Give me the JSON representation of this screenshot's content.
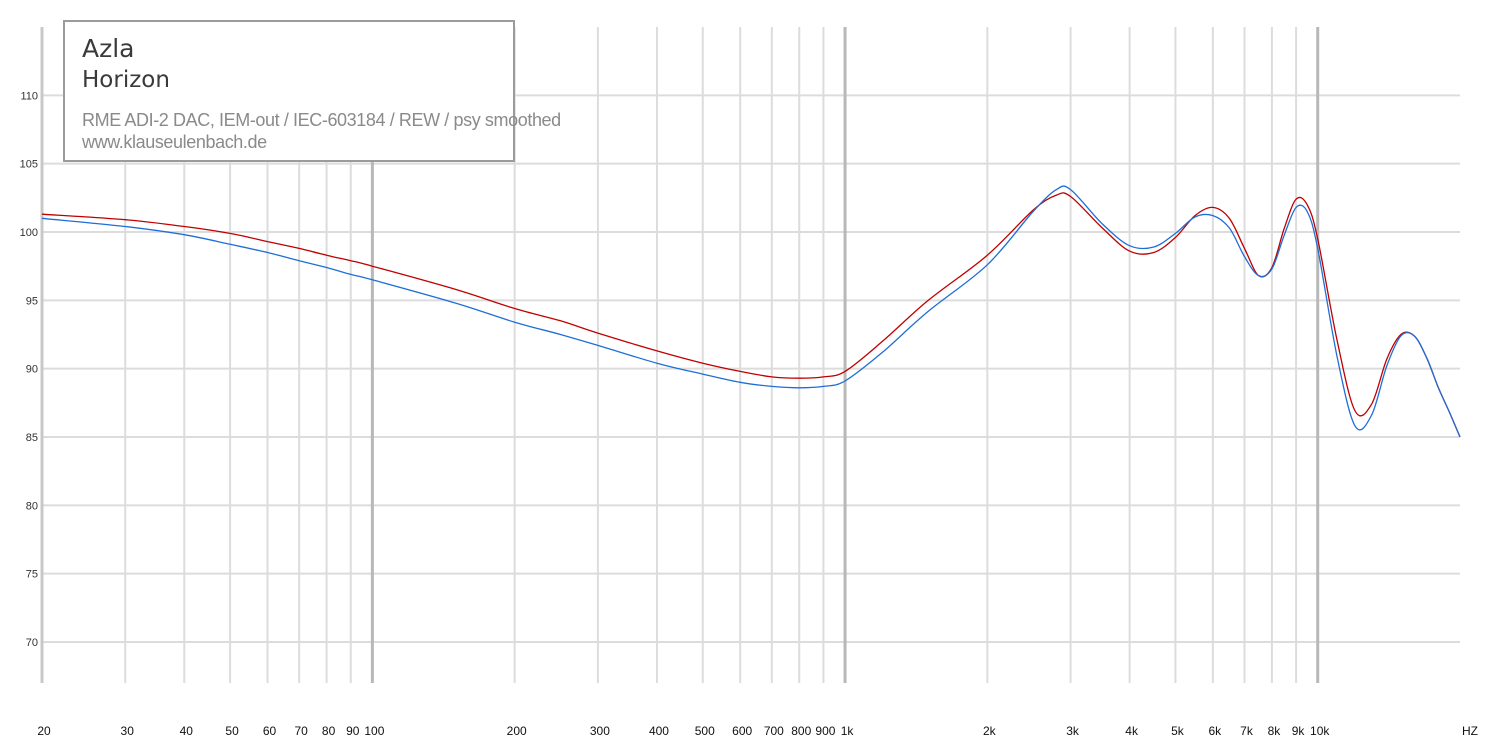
{
  "chart_data": {
    "type": "line",
    "title": "",
    "xlabel": "HZ",
    "ylabel": "",
    "x_scale": "log",
    "xlim": [
      20,
      20000
    ],
    "ylim": [
      67,
      115
    ],
    "grid": true,
    "x_ticks": [
      {
        "v": 20,
        "label": "20"
      },
      {
        "v": 30,
        "label": "30"
      },
      {
        "v": 40,
        "label": "40"
      },
      {
        "v": 50,
        "label": "50"
      },
      {
        "v": 60,
        "label": "60"
      },
      {
        "v": 70,
        "label": "70"
      },
      {
        "v": 80,
        "label": "80"
      },
      {
        "v": 90,
        "label": "90"
      },
      {
        "v": 100,
        "label": "100"
      },
      {
        "v": 200,
        "label": "200"
      },
      {
        "v": 300,
        "label": "300"
      },
      {
        "v": 400,
        "label": "400"
      },
      {
        "v": 500,
        "label": "500"
      },
      {
        "v": 600,
        "label": "600"
      },
      {
        "v": 700,
        "label": "700"
      },
      {
        "v": 800,
        "label": "800"
      },
      {
        "v": 900,
        "label": "900"
      },
      {
        "v": 1000,
        "label": "1k"
      },
      {
        "v": 2000,
        "label": "2k"
      },
      {
        "v": 3000,
        "label": "3k"
      },
      {
        "v": 4000,
        "label": "4k"
      },
      {
        "v": 5000,
        "label": "5k"
      },
      {
        "v": 6000,
        "label": "6k"
      },
      {
        "v": 7000,
        "label": "7k"
      },
      {
        "v": 8000,
        "label": "8k"
      },
      {
        "v": 9000,
        "label": "9k"
      },
      {
        "v": 10000,
        "label": "10k"
      }
    ],
    "y_ticks": [
      70,
      75,
      80,
      85,
      90,
      95,
      100,
      105,
      110
    ],
    "series": [
      {
        "color": "#c00000",
        "x": [
          20,
          30,
          40,
          50,
          60,
          70,
          80,
          90,
          100,
          150,
          200,
          250,
          300,
          400,
          500,
          600,
          700,
          800,
          900,
          1000,
          1200,
          1500,
          2000,
          2500,
          2800,
          3000,
          3500,
          4000,
          4500,
          5000,
          5500,
          6000,
          6500,
          7000,
          7500,
          8000,
          8500,
          9000,
          9500,
          10000,
          11000,
          12000,
          13000,
          14000,
          15000,
          16000,
          17000,
          18000,
          19000,
          20000
        ],
        "y": [
          101.3,
          100.9,
          100.4,
          99.9,
          99.3,
          98.8,
          98.3,
          97.9,
          97.5,
          95.8,
          94.4,
          93.5,
          92.6,
          91.3,
          90.4,
          89.8,
          89.4,
          89.3,
          89.4,
          89.8,
          92.0,
          95.0,
          98.3,
          101.6,
          102.7,
          102.6,
          100.3,
          98.6,
          98.5,
          99.6,
          101.2,
          101.8,
          101.0,
          98.8,
          96.8,
          97.4,
          100.3,
          102.4,
          102.0,
          99.5,
          92.0,
          86.9,
          87.4,
          90.7,
          92.5,
          92.4,
          90.8,
          88.6,
          86.8,
          85.0
        ]
      },
      {
        "color": "#1e6ed8",
        "x": [
          20,
          30,
          40,
          50,
          60,
          70,
          80,
          90,
          100,
          150,
          200,
          250,
          300,
          400,
          500,
          600,
          700,
          800,
          900,
          1000,
          1200,
          1500,
          2000,
          2500,
          2800,
          3000,
          3500,
          4000,
          4500,
          5000,
          5500,
          6000,
          6500,
          7000,
          7500,
          8000,
          8500,
          9000,
          9500,
          10000,
          11000,
          12000,
          13000,
          14000,
          15000,
          16000,
          17000,
          18000,
          19000,
          20000
        ],
        "y": [
          101.0,
          100.4,
          99.8,
          99.1,
          98.5,
          97.9,
          97.4,
          96.9,
          96.5,
          94.8,
          93.4,
          92.5,
          91.7,
          90.4,
          89.6,
          89.0,
          88.7,
          88.6,
          88.7,
          89.1,
          91.2,
          94.2,
          97.6,
          101.5,
          103.1,
          103.1,
          100.6,
          99.0,
          98.9,
          99.9,
          101.1,
          101.2,
          100.3,
          98.2,
          96.8,
          97.3,
          99.8,
          101.8,
          101.5,
          98.8,
          90.8,
          85.8,
          86.6,
          90.2,
          92.4,
          92.4,
          90.8,
          88.6,
          86.8,
          85.0
        ]
      }
    ]
  },
  "info": {
    "brand": "Azla",
    "model": "Horizon",
    "setup": "RME ADI-2 DAC, IEM-out / IEC-603184 / REW / psy smoothed",
    "site": "www.klauseulenbach.de"
  }
}
